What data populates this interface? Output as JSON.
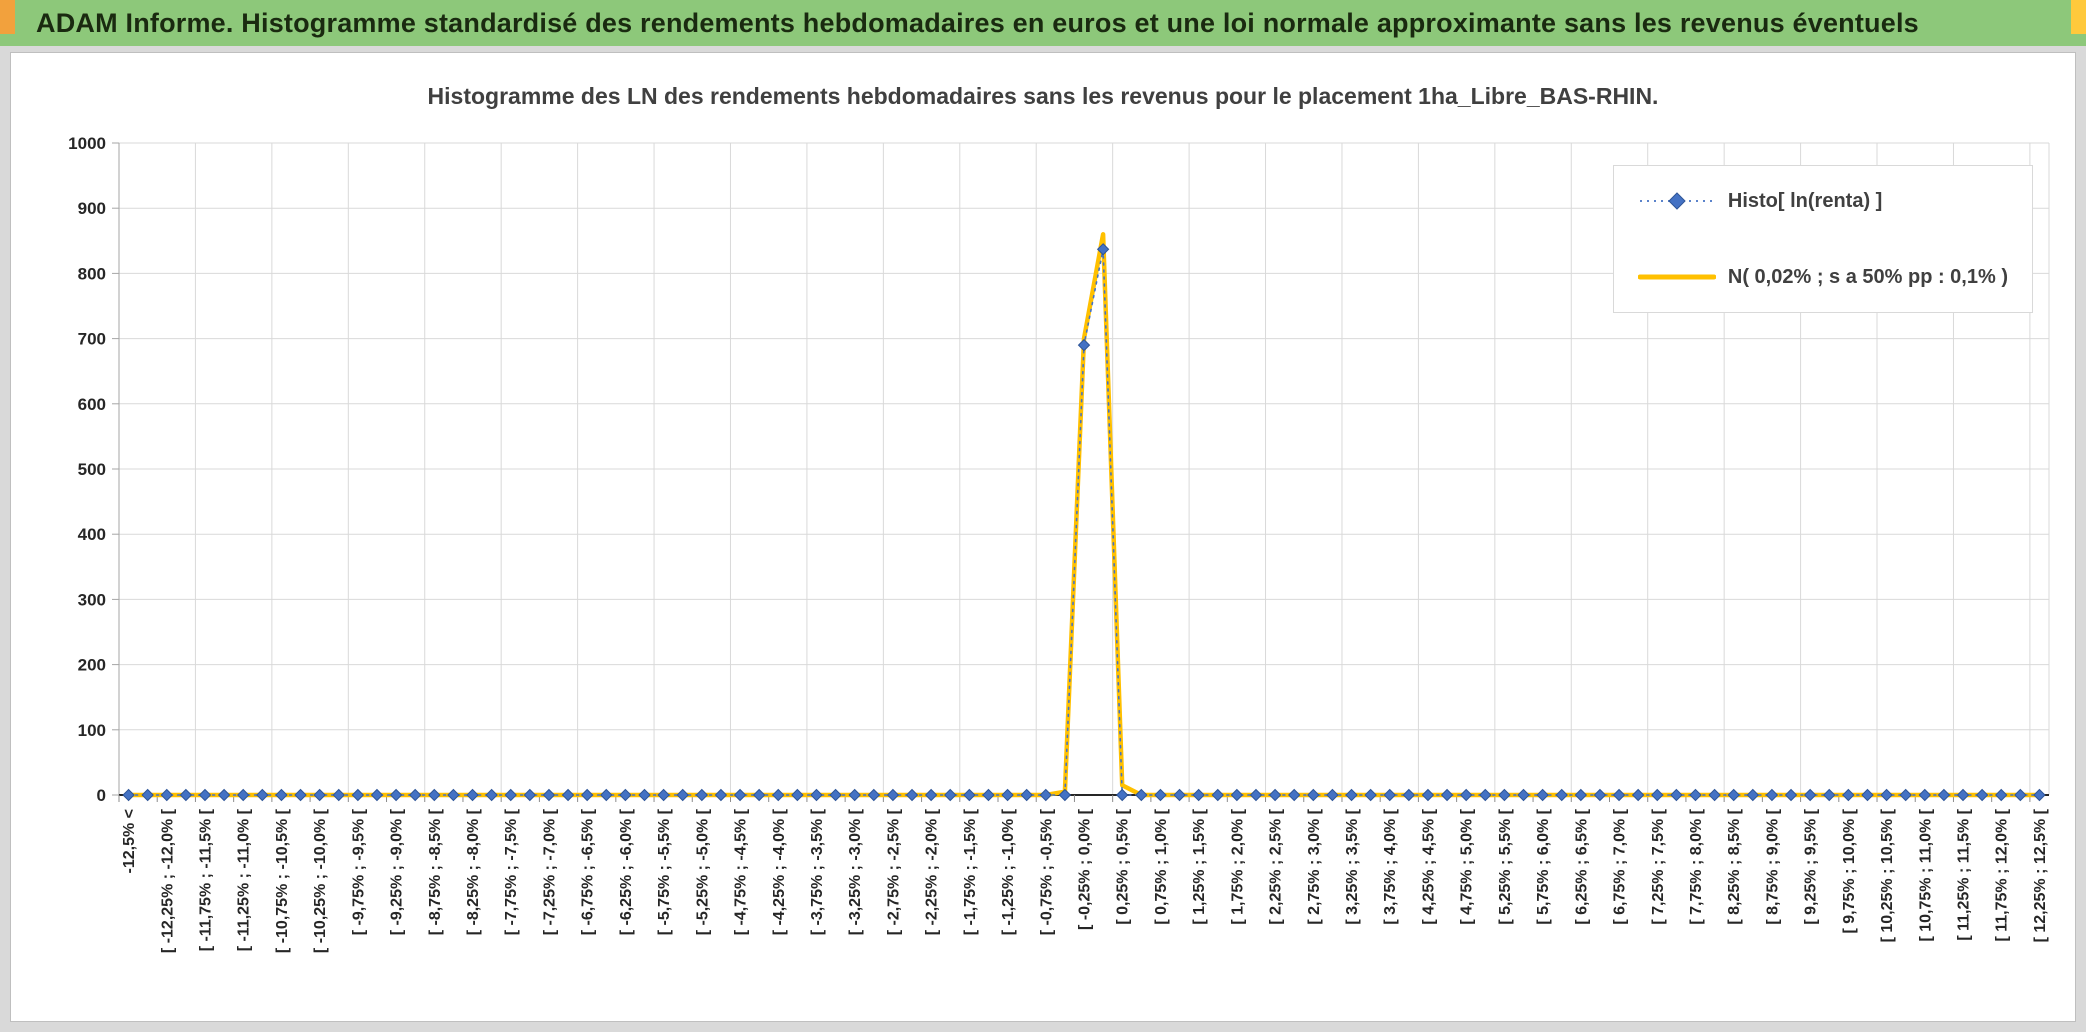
{
  "window": {
    "title_bar": {
      "text": "ADAM Informe. Histogramme standardisé des rendements hebdomadaires en euros et une loi normale approximante sans les revenus éventuels",
      "bg_color": "#8DC87A",
      "text_color": "#1A2A10",
      "left_corner_color": "#F2A13D",
      "right_corner_color": "#FFC93C"
    }
  },
  "chart_data": {
    "type": "line",
    "title": "Histogramme des LN des rendements hebdomadaires sans les revenus pour le placement 1ha_Libre_BAS-RHIN.",
    "xlabel": "",
    "ylabel": "",
    "ylim": [
      0,
      1000
    ],
    "ytick_step": 100,
    "grid": true,
    "legend_position": "top-right",
    "x_label_rotation": 90,
    "categories": [
      "-12,5% <",
      "",
      "[ -12,25% ; -12,0% [",
      "",
      "[ -11,75% ; -11,5% [",
      "",
      "[ -11,25% ; -11,0% [",
      "",
      "[ -10,75% ; -10,5% [",
      "",
      "[ -10,25% ; -10,0% [",
      "",
      "[ -9,75% ; -9,5% [",
      "",
      "[ -9,25% ; -9,0% [",
      "",
      "[ -8,75% ; -8,5% [",
      "",
      "[ -8,25% ; -8,0% [",
      "",
      "[ -7,75% ; -7,5% [",
      "",
      "[ -7,25% ; -7,0% [",
      "",
      "[ -6,75% ; -6,5% [",
      "",
      "[ -6,25% ; -6,0% [",
      "",
      "[ -5,75% ; -5,5% [",
      "",
      "[ -5,25% ; -5,0% [",
      "",
      "[ -4,75% ; -4,5% [",
      "",
      "[ -4,25% ; -4,0% [",
      "",
      "[ -3,75% ; -3,5% [",
      "",
      "[ -3,25% ; -3,0% [",
      "",
      "[ -2,75% ; -2,5% [",
      "",
      "[ -2,25% ; -2,0% [",
      "",
      "[ -1,75% ; -1,5% [",
      "",
      "[ -1,25% ; -1,0% [",
      "",
      "[ -0,75% ; -0,5% [",
      "",
      "[ -0,25% ; 0,0% [",
      "",
      "[ 0,25% ; 0,5% [",
      "",
      "[ 0,75% ; 1,0% [",
      "",
      "[ 1,25% ; 1,5% [",
      "",
      "[ 1,75% ; 2,0% [",
      "",
      "[ 2,25% ; 2,5% [",
      "",
      "[ 2,75% ; 3,0% [",
      "",
      "[ 3,25% ; 3,5% [",
      "",
      "[ 3,75% ; 4,0% [",
      "",
      "[ 4,25% ; 4,5% [",
      "",
      "[ 4,75% ; 5,0% [",
      "",
      "[ 5,25% ; 5,5% [",
      "",
      "[ 5,75% ; 6,0% [",
      "",
      "[ 6,25% ; 6,5% [",
      "",
      "[ 6,75% ; 7,0% [",
      "",
      "[ 7,25% ; 7,5% [",
      "",
      "[ 7,75% ; 8,0% [",
      "",
      "[ 8,25% ; 8,5% [",
      "",
      "[ 8,75% ; 9,0% [",
      "",
      "[ 9,25% ; 9,5% [",
      "",
      "[ 9,75% ; 10,0% [",
      "",
      "[ 10,25% ; 10,5% [",
      "",
      "[ 10,75% ; 11,0% [",
      "",
      "[ 11,25% ; 11,5% [",
      "",
      "[ 11,75% ; 12,0% [",
      "",
      "[ 12,25% ; 12,5% ["
    ],
    "series": [
      {
        "name": "Histo[ ln(renta) ]",
        "type": "line",
        "line_style": "dotted",
        "marker": "diamond",
        "color": "#4472C4",
        "marker_edge": "#2E5597",
        "values": [
          0,
          0,
          0,
          0,
          0,
          0,
          0,
          0,
          0,
          0,
          0,
          0,
          0,
          0,
          0,
          0,
          0,
          0,
          0,
          0,
          0,
          0,
          0,
          0,
          0,
          0,
          0,
          0,
          0,
          0,
          0,
          0,
          0,
          0,
          0,
          0,
          0,
          0,
          0,
          0,
          0,
          0,
          0,
          0,
          0,
          0,
          0,
          0,
          0,
          0,
          690,
          837,
          0,
          0,
          0,
          0,
          0,
          0,
          0,
          0,
          0,
          0,
          0,
          0,
          0,
          0,
          0,
          0,
          0,
          0,
          0,
          0,
          0,
          0,
          0,
          0,
          0,
          0,
          0,
          0,
          0,
          0,
          0,
          0,
          0,
          0,
          0,
          0,
          0,
          0,
          0,
          0,
          0,
          0,
          0,
          0,
          0,
          0,
          0,
          0,
          0
        ]
      },
      {
        "name": "N( 0,02% ; s a 50% pp : 0,1% )",
        "type": "line",
        "line_style": "solid",
        "marker": "none",
        "color": "#FFC000",
        "marker_edge": "#BF8F00",
        "values": [
          0,
          0,
          0,
          0,
          0,
          0,
          0,
          0,
          0,
          0,
          0,
          0,
          0,
          0,
          0,
          0,
          0,
          0,
          0,
          0,
          0,
          0,
          0,
          0,
          0,
          0,
          0,
          0,
          0,
          0,
          0,
          0,
          0,
          0,
          0,
          0,
          0,
          0,
          0,
          0,
          0,
          0,
          0,
          0,
          0,
          0,
          0,
          0,
          0,
          5,
          700,
          860,
          15,
          0,
          0,
          0,
          0,
          0,
          0,
          0,
          0,
          0,
          0,
          0,
          0,
          0,
          0,
          0,
          0,
          0,
          0,
          0,
          0,
          0,
          0,
          0,
          0,
          0,
          0,
          0,
          0,
          0,
          0,
          0,
          0,
          0,
          0,
          0,
          0,
          0,
          0,
          0,
          0,
          0,
          0,
          0,
          0,
          0,
          0,
          0,
          0
        ]
      }
    ]
  }
}
